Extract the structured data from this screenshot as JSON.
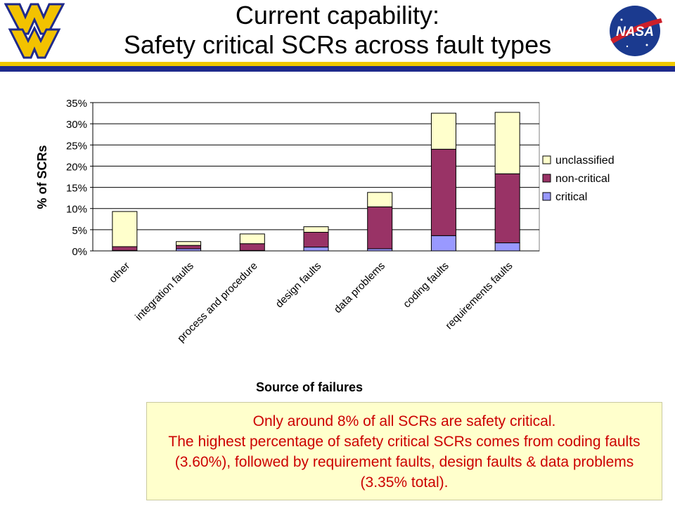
{
  "slide": {
    "title_line1": "Current capability:",
    "title_line2": "Safety critical SCRs across fault types",
    "callout": [
      "Only around 8% of all SCRs are safety critical.",
      "The highest percentage of safety critical SCRs comes from coding faults",
      "(3.60%), followed by requirement faults, design faults & data problems",
      "(3.35% total)."
    ],
    "logo_right_text": "NASA",
    "colors": {
      "critical": "#9999ff",
      "non_critical": "#993366",
      "unclassified": "#ffffcc",
      "rule_yellow": "#f0c800",
      "rule_blue": "#1f2a8c",
      "callout_text": "#cc0000"
    }
  },
  "chart_data": {
    "type": "bar",
    "stacked": true,
    "title": "",
    "xlabel": "Source of failures",
    "ylabel": "% of SCRs",
    "ylim": [
      0,
      35
    ],
    "yticks": [
      "0%",
      "5%",
      "10%",
      "15%",
      "20%",
      "25%",
      "30%",
      "35%"
    ],
    "grid": true,
    "legend_position": "right",
    "categories": [
      "other",
      "integration faults",
      "process and procedure",
      "design faults",
      "data problems",
      "coding faults",
      "requirements faults"
    ],
    "series": [
      {
        "name": "critical",
        "color": "#9999ff",
        "values": [
          0.1,
          0.5,
          0.1,
          0.9,
          0.5,
          3.6,
          1.9
        ]
      },
      {
        "name": "non-critical",
        "color": "#993366",
        "values": [
          0.9,
          0.8,
          1.6,
          3.5,
          9.9,
          20.4,
          16.3
        ]
      },
      {
        "name": "unclassified",
        "color": "#ffffcc",
        "values": [
          8.3,
          0.9,
          2.3,
          1.3,
          3.4,
          8.5,
          14.5
        ]
      }
    ],
    "legend_order": [
      "unclassified",
      "non-critical",
      "critical"
    ]
  }
}
